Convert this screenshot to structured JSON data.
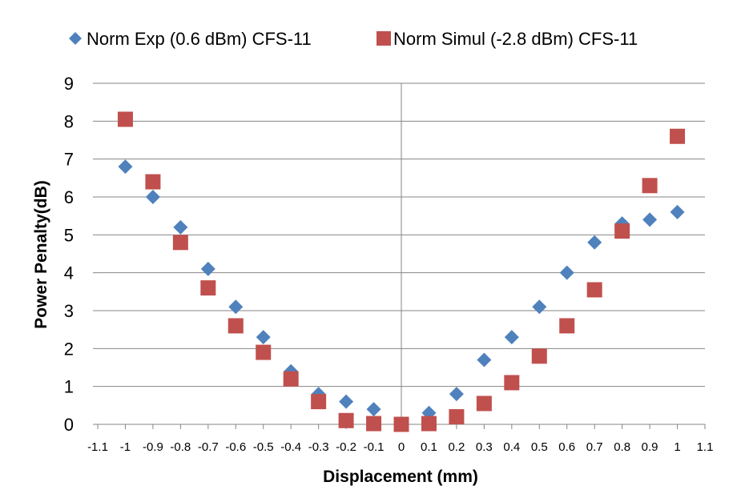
{
  "chart_data": {
    "type": "scatter",
    "xlabel": "Displacement (mm)",
    "ylabel": "Power Penalty(dB)",
    "xlim": [
      -1.1,
      1.1
    ],
    "ylim": [
      0,
      9
    ],
    "x_ticks": [
      -1.1,
      -1,
      -0.9,
      -0.8,
      -0.7,
      -0.6,
      -0.5,
      -0.4,
      -0.3,
      -0.2,
      -0.1,
      0,
      0.1,
      0.2,
      0.3,
      0.4,
      0.5,
      0.6,
      0.7,
      0.8,
      0.9,
      1,
      1.1
    ],
    "y_ticks": [
      0,
      1,
      2,
      3,
      4,
      5,
      6,
      7,
      8,
      9
    ],
    "grid": "horizontal",
    "legend_position": "top",
    "series": [
      {
        "name": "Norm Exp (0.6 dBm) CFS-11",
        "marker": "diamond",
        "color": "#4F81BD",
        "points": [
          [
            -1,
            6.8
          ],
          [
            -0.9,
            6.0
          ],
          [
            -0.8,
            5.2
          ],
          [
            -0.7,
            4.1
          ],
          [
            -0.6,
            3.1
          ],
          [
            -0.5,
            2.3
          ],
          [
            -0.4,
            1.4
          ],
          [
            -0.3,
            0.8
          ],
          [
            -0.2,
            0.6
          ],
          [
            -0.1,
            0.4
          ],
          [
            0,
            0
          ],
          [
            0.1,
            0.3
          ],
          [
            0.2,
            0.8
          ],
          [
            0.3,
            1.7
          ],
          [
            0.4,
            2.3
          ],
          [
            0.5,
            3.1
          ],
          [
            0.6,
            4.0
          ],
          [
            0.7,
            4.8
          ],
          [
            0.8,
            5.3
          ],
          [
            0.9,
            5.4
          ],
          [
            1,
            5.6
          ]
        ]
      },
      {
        "name": "Norm Simul (-2.8 dBm) CFS-11",
        "marker": "square",
        "color": "#C0504D",
        "points": [
          [
            -1,
            8.05
          ],
          [
            -0.9,
            6.4
          ],
          [
            -0.8,
            4.8
          ],
          [
            -0.7,
            3.6
          ],
          [
            -0.6,
            2.6
          ],
          [
            -0.5,
            1.9
          ],
          [
            -0.4,
            1.2
          ],
          [
            -0.3,
            0.6
          ],
          [
            -0.2,
            0.1
          ],
          [
            -0.1,
            0.02
          ],
          [
            0,
            0
          ],
          [
            0.1,
            0.02
          ],
          [
            0.2,
            0.2
          ],
          [
            0.3,
            0.55
          ],
          [
            0.4,
            1.1
          ],
          [
            0.5,
            1.8
          ],
          [
            0.6,
            2.6
          ],
          [
            0.7,
            3.55
          ],
          [
            0.8,
            5.1
          ],
          [
            0.9,
            6.3
          ],
          [
            1,
            7.6
          ]
        ]
      }
    ]
  }
}
